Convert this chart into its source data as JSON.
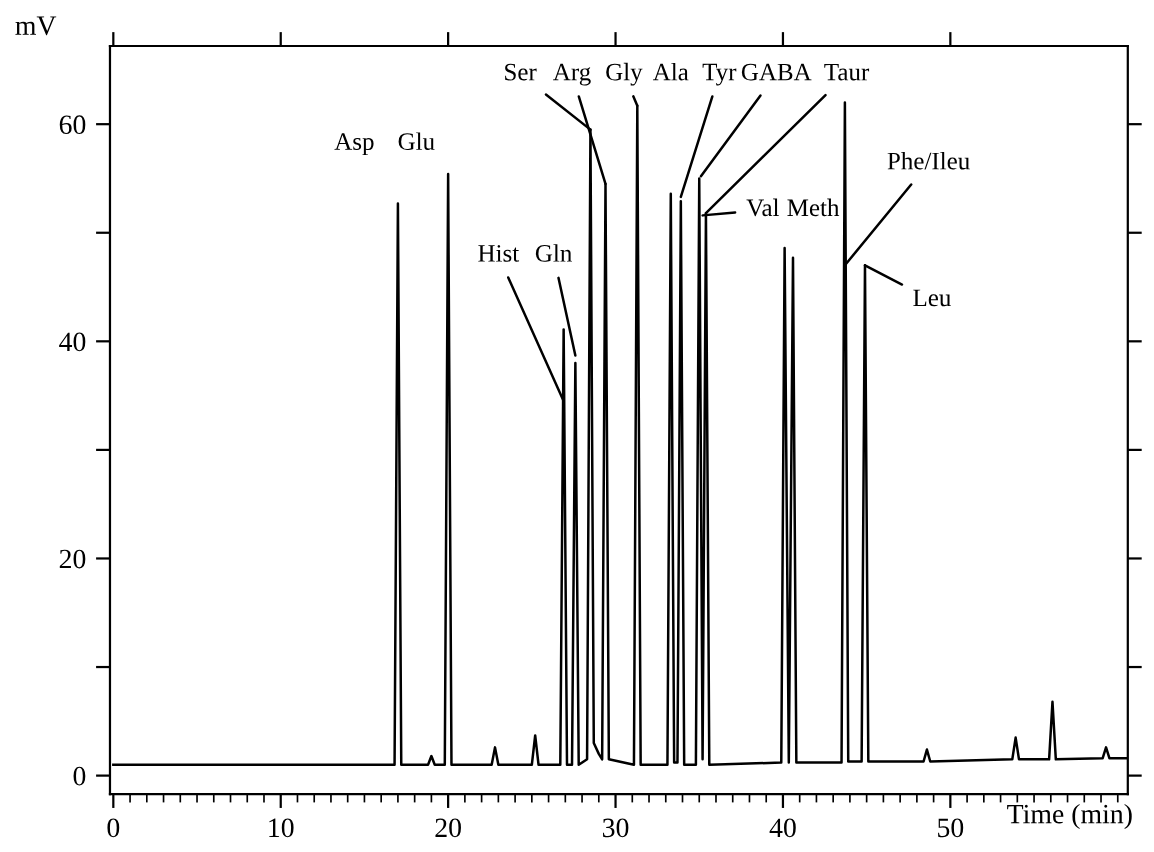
{
  "chart_data": {
    "type": "line",
    "xlabel": "Time (min)",
    "ylabel": "mV",
    "series": [
      {
        "color": "#000000",
        "x": [
          0,
          16.8,
          17.0,
          17.2,
          18.8,
          19.0,
          19.2,
          19.8,
          20.0,
          20.2,
          22.6,
          22.8,
          23.0,
          25.0,
          25.2,
          25.4,
          26.7,
          26.9,
          27.1,
          27.4,
          27.6,
          27.8,
          28.3,
          28.5,
          28.7,
          29.0,
          29.2,
          29.4,
          29.6,
          31.1,
          31.3,
          31.5,
          33.1,
          33.3,
          33.5,
          33.7,
          33.9,
          34.1,
          34.8,
          35.0,
          35.2,
          35.4,
          35.6,
          39.9,
          40.1,
          40.35,
          40.6,
          40.8,
          43.5,
          43.7,
          43.9,
          44.7,
          44.9,
          45.1,
          48.4,
          48.6,
          48.8,
          51.0,
          53.7,
          53.9,
          54.1,
          55.9,
          56.1,
          56.3,
          59.1,
          59.3,
          59.5,
          60.6
        ],
        "values": [
          1.0,
          1.0,
          52.7,
          1.0,
          1.0,
          1.8,
          1.0,
          1.0,
          55.4,
          1.0,
          1.0,
          2.6,
          1.0,
          1.0,
          3.7,
          1.0,
          1.0,
          41.1,
          1.0,
          1.0,
          38.0,
          1.0,
          1.5,
          59.5,
          3.0,
          2.0,
          1.5,
          54.5,
          1.5,
          1.0,
          61.7,
          1.0,
          1.0,
          53.6,
          1.2,
          1.2,
          52.9,
          1.0,
          1.0,
          55.0,
          1.5,
          51.8,
          1.0,
          1.2,
          48.6,
          1.2,
          47.7,
          1.2,
          1.2,
          62.0,
          1.3,
          1.3,
          47.0,
          1.3,
          1.3,
          2.4,
          1.3,
          1.4,
          1.5,
          3.5,
          1.5,
          1.5,
          6.8,
          1.5,
          1.6,
          2.6,
          1.6,
          1.6
        ]
      }
    ],
    "xlim": [
      -0.2,
      60.6
    ],
    "ylim": [
      -1.7,
      67.2
    ],
    "xticks": [
      0,
      10,
      20,
      30,
      40,
      50
    ],
    "yticks": [
      0,
      {
        "value": 10,
        "label": null
      },
      20,
      {
        "value": 30,
        "label": null
      },
      40,
      {
        "value": 50,
        "label": null
      },
      60
    ],
    "annotations": [
      {
        "text": "Asp",
        "x": 17.0,
        "y": 52.7
      },
      {
        "text": "Glu",
        "x": 20.0,
        "y": 55.4
      },
      {
        "text": "Hist",
        "x": 26.87,
        "y": 34.6
      },
      {
        "text": "Gln",
        "x": 27.6,
        "y": 38.7
      },
      {
        "text": "Ser",
        "x": 28.5,
        "y": 59.5
      },
      {
        "text": "Arg",
        "x": 29.4,
        "y": 54.5
      },
      {
        "text": "Gly",
        "x": 31.3,
        "y": 61.7
      },
      {
        "text": "Ala",
        "x": 33.3,
        "y": 53.6
      },
      {
        "text": "Tyr",
        "x": 33.9,
        "y": 53.3
      },
      {
        "text": "GABA",
        "x": 35.1,
        "y": 55.2
      },
      {
        "text": "Taur",
        "x": 35.4,
        "y": 51.8
      },
      {
        "text": "Val",
        "x": 35.2,
        "y": 51.6
      },
      {
        "text": "Meth",
        "x": 40.6,
        "y": 47.7
      },
      {
        "text": "Phe/Ileu",
        "x": 43.75,
        "y": 47.1
      },
      {
        "text": "Leu",
        "x": 44.9,
        "y": 47.0
      }
    ],
    "grid": false,
    "legend": false,
    "marker": "none",
    "line_style": "solid"
  }
}
